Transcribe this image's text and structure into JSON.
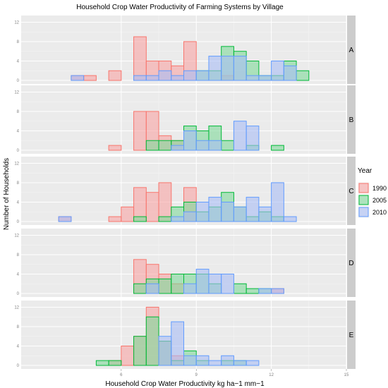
{
  "chart_data": {
    "type": "histogram",
    "title": "Household Crop Water Productivity of Farming Systems by Village",
    "xlabel": "Household Crop Water Productivity kg ha−1 mm−1",
    "ylabel": "Number of Households",
    "xlim": [
      2,
      15
    ],
    "ylim": [
      0,
      12.5
    ],
    "x_ticks": [
      6,
      9,
      12,
      15
    ],
    "y_ticks": [
      0,
      4,
      8,
      12
    ],
    "bin_width": 0.5,
    "bin_start": 3.0,
    "facet_labels": [
      "A",
      "B",
      "C",
      "D",
      "E"
    ],
    "legend": {
      "title": "Year",
      "position": "right",
      "entries": [
        "1990",
        "2005",
        "2010"
      ]
    },
    "colors": {
      "1990": {
        "fill": "#f8a4a4",
        "stroke": "#f8766d"
      },
      "2005": {
        "fill": "#7fd99a",
        "stroke": "#00ba38"
      },
      "2010": {
        "fill": "#a9bdf5",
        "stroke": "#619cff"
      }
    },
    "panels": [
      {
        "facet": "A",
        "series": [
          {
            "name": "1990",
            "values": [
              0,
              0,
              1,
              1,
              0,
              2,
              0,
              9,
              4,
              4,
              3,
              8,
              0,
              0,
              1,
              0,
              0,
              0,
              0,
              0,
              0,
              0,
              0,
              0,
              0,
              0
            ]
          },
          {
            "name": "2005",
            "values": [
              0,
              0,
              0,
              0,
              0,
              0,
              0,
              0,
              0,
              0,
              0,
              0,
              2,
              2,
              7,
              6,
              4,
              1,
              1,
              4,
              2,
              0,
              0,
              0,
              0,
              0
            ]
          },
          {
            "name": "2010",
            "values": [
              0,
              0,
              1,
              0,
              0,
              0,
              0,
              1,
              1,
              2,
              1,
              2,
              2,
              5,
              5,
              5,
              1,
              1,
              4,
              3,
              0,
              0,
              0,
              0,
              0,
              0
            ]
          }
        ]
      },
      {
        "facet": "B",
        "series": [
          {
            "name": "1990",
            "values": [
              0,
              0,
              0,
              0,
              0,
              1,
              0,
              8,
              8,
              3,
              2,
              0,
              0,
              0,
              0,
              0,
              0,
              0,
              0,
              0,
              0,
              0,
              0,
              0,
              0,
              0
            ]
          },
          {
            "name": "2005",
            "values": [
              0,
              0,
              0,
              0,
              0,
              0,
              0,
              0,
              2,
              2,
              2,
              5,
              4,
              5,
              2,
              0,
              1,
              0,
              1,
              0,
              0,
              0,
              0,
              0,
              0,
              0
            ]
          },
          {
            "name": "2010",
            "values": [
              0,
              0,
              0,
              0,
              0,
              0,
              0,
              0,
              0,
              0,
              1,
              4,
              2,
              2,
              0,
              6,
              5,
              0,
              0,
              0,
              0,
              0,
              0,
              0,
              0,
              0
            ]
          }
        ]
      },
      {
        "facet": "C",
        "series": [
          {
            "name": "1990",
            "values": [
              0,
              1,
              0,
              0,
              0,
              1,
              3,
              7,
              6,
              8,
              0,
              7,
              0,
              0,
              0,
              0,
              0,
              0,
              0,
              0,
              0,
              0,
              0,
              0,
              0,
              0
            ]
          },
          {
            "name": "2005",
            "values": [
              0,
              0,
              0,
              0,
              0,
              0,
              0,
              1,
              0,
              1,
              3,
              4,
              2,
              3,
              6,
              3,
              1,
              2,
              1,
              0,
              0,
              0,
              0,
              0,
              0,
              0
            ]
          },
          {
            "name": "2010",
            "values": [
              0,
              1,
              0,
              0,
              0,
              0,
              0,
              0,
              0,
              0,
              1,
              2,
              4,
              5,
              4,
              3,
              5,
              3,
              8,
              1,
              0,
              0,
              0,
              0,
              0,
              0
            ]
          }
        ]
      },
      {
        "facet": "D",
        "series": [
          {
            "name": "1990",
            "values": [
              0,
              0,
              0,
              0,
              0,
              0,
              0,
              7,
              6,
              4,
              2,
              0,
              0,
              0,
              0,
              0,
              0,
              0,
              1,
              0,
              0,
              0,
              0,
              0,
              0,
              0
            ]
          },
          {
            "name": "2005",
            "values": [
              0,
              0,
              0,
              0,
              0,
              0,
              0,
              2,
              3,
              3,
              4,
              4,
              4,
              2,
              0,
              2,
              1,
              1,
              0,
              0,
              0,
              0,
              0,
              0,
              0,
              0
            ]
          },
          {
            "name": "2010",
            "values": [
              0,
              0,
              0,
              0,
              0,
              0,
              0,
              0,
              2,
              0,
              0,
              2,
              5,
              4,
              4,
              0,
              0,
              1,
              1,
              0,
              0,
              0,
              0,
              0,
              0,
              0
            ]
          }
        ]
      },
      {
        "facet": "E",
        "series": [
          {
            "name": "1990",
            "values": [
              0,
              0,
              0,
              0,
              0,
              1,
              4,
              6,
              12,
              5,
              2,
              0,
              0,
              0,
              0,
              0,
              0,
              0,
              0,
              0,
              0,
              0,
              0,
              0,
              0,
              0
            ]
          },
          {
            "name": "2005",
            "values": [
              0,
              0,
              0,
              0,
              1,
              1,
              0,
              6,
              10,
              5,
              1,
              3,
              1,
              0,
              1,
              1,
              0,
              0,
              0,
              0,
              0,
              0,
              0,
              0,
              0,
              0
            ]
          },
          {
            "name": "2010",
            "values": [
              0,
              0,
              0,
              0,
              0,
              0,
              0,
              0,
              0,
              6,
              9,
              2,
              2,
              1,
              2,
              1,
              1,
              0,
              0,
              0,
              0,
              0,
              0,
              0,
              0,
              0
            ]
          }
        ]
      }
    ]
  }
}
